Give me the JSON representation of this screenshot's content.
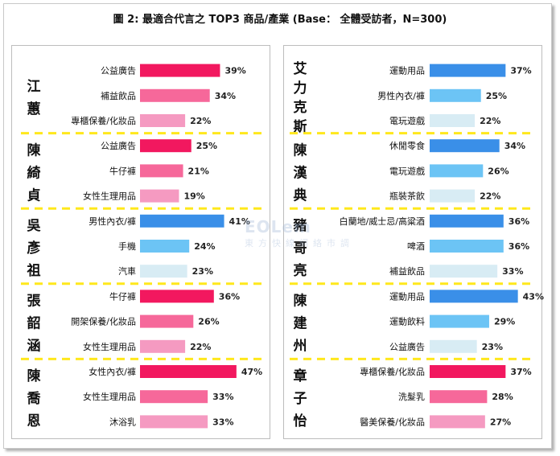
{
  "title": "圖 2: 最適合代言之 TOP3 商品/產業 (Base： 全體受訪者，N=300)",
  "watermark": {
    "logo": "EOLem",
    "sub": "東方快線網絡市調"
  },
  "colors": {
    "pink": [
      "#f2185f",
      "#f6689a",
      "#f59ac1"
    ],
    "blue": [
      "#3a8fe8",
      "#6cc4f5",
      "#d8ecf4"
    ],
    "separator": "#ffe81c",
    "label": "#111111"
  },
  "chart_data": {
    "type": "bar",
    "orientation": "horizontal",
    "value_suffix": "%",
    "panels": [
      {
        "side": "left",
        "color_scheme": "pink",
        "groups": [
          {
            "name": "江蕙",
            "name_chars": [
              "江",
              "蕙"
            ],
            "color_scheme": "pink",
            "items": [
              {
                "label": "公益廣告",
                "value": 39
              },
              {
                "label": "補益飲品",
                "value": 34
              },
              {
                "label": "專櫃保養/化妝品",
                "value": 22
              }
            ]
          },
          {
            "name": "陳綺貞",
            "name_chars": [
              "陳",
              "綺",
              "貞"
            ],
            "color_scheme": "pink",
            "items": [
              {
                "label": "公益廣告",
                "value": 25
              },
              {
                "label": "牛仔褲",
                "value": 21
              },
              {
                "label": "女性生理用品",
                "value": 19
              }
            ]
          },
          {
            "name": "吳彥祖",
            "name_chars": [
              "吳",
              "彥",
              "祖"
            ],
            "color_scheme": "blue",
            "items": [
              {
                "label": "男性內衣/褲",
                "value": 41
              },
              {
                "label": "手機",
                "value": 24
              },
              {
                "label": "汽車",
                "value": 23
              }
            ]
          },
          {
            "name": "張韶涵",
            "name_chars": [
              "張",
              "韶",
              "涵"
            ],
            "color_scheme": "pink",
            "items": [
              {
                "label": "牛仔褲",
                "value": 36
              },
              {
                "label": "開架保養/化妝品",
                "value": 26
              },
              {
                "label": "女性生理用品",
                "value": 22
              }
            ]
          },
          {
            "name": "陳喬恩",
            "name_chars": [
              "陳",
              "喬",
              "恩"
            ],
            "color_scheme": "pink",
            "items": [
              {
                "label": "女性內衣/褲",
                "value": 47
              },
              {
                "label": "女性生理用品",
                "value": 33
              },
              {
                "label": "沐浴乳",
                "value": 33
              }
            ]
          }
        ]
      },
      {
        "side": "right",
        "color_scheme": "blue",
        "groups": [
          {
            "name": "艾力克斯",
            "name_chars": [
              "艾",
              "力",
              "克",
              "斯"
            ],
            "color_scheme": "blue",
            "items": [
              {
                "label": "運動用品",
                "value": 37
              },
              {
                "label": "男性內衣/褲",
                "value": 25
              },
              {
                "label": "電玩遊戲",
                "value": 22
              }
            ]
          },
          {
            "name": "陳漢典",
            "name_chars": [
              "陳",
              "漢",
              "典"
            ],
            "color_scheme": "blue",
            "items": [
              {
                "label": "休閒零食",
                "value": 34
              },
              {
                "label": "電玩遊戲",
                "value": 26
              },
              {
                "label": "瓶裝茶飲",
                "value": 22
              }
            ]
          },
          {
            "name": "豬哥亮",
            "name_chars": [
              "豬",
              "哥",
              "亮"
            ],
            "color_scheme": "blue",
            "items": [
              {
                "label": "白蘭地/威士忌/高粱酒",
                "value": 36
              },
              {
                "label": "啤酒",
                "value": 36
              },
              {
                "label": "補益飲品",
                "value": 33
              }
            ]
          },
          {
            "name": "陳建州",
            "name_chars": [
              "陳",
              "建",
              "州"
            ],
            "color_scheme": "blue",
            "items": [
              {
                "label": "運動用品",
                "value": 43
              },
              {
                "label": "運動飲料",
                "value": 29
              },
              {
                "label": "公益廣告",
                "value": 23
              }
            ]
          },
          {
            "name": "章子怡",
            "name_chars": [
              "章",
              "子",
              "怡"
            ],
            "color_scheme": "pink",
            "items": [
              {
                "label": "專櫃保養/化妝品",
                "value": 37
              },
              {
                "label": "洗髮乳",
                "value": 28
              },
              {
                "label": "醫美保養/化妝品",
                "value": 27
              }
            ]
          }
        ]
      }
    ]
  }
}
